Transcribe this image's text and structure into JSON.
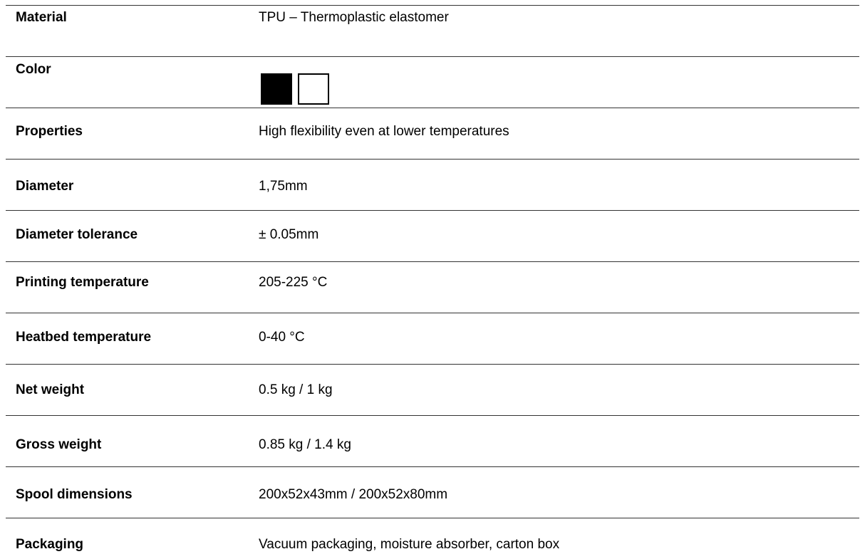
{
  "table": {
    "rows": [
      {
        "label": "Material",
        "value": "TPU –  Thermoplastic elastomer"
      },
      {
        "label": "Color"
      },
      {
        "label": "Properties",
        "value": "High flexibility even at lower temperatures"
      },
      {
        "label": "Diameter",
        "value": "1,75mm"
      },
      {
        "label": "Diameter tolerance",
        "value": "± 0.05mm"
      },
      {
        "label": "Printing temperature",
        "value": "205-225 °C"
      },
      {
        "label": "Heatbed temperature",
        "value": "0-40 °C"
      },
      {
        "label": "Net weight",
        "value": "0.5 kg / 1 kg"
      },
      {
        "label": "Gross weight",
        "value": "0.85 kg  / 1.4 kg"
      },
      {
        "label": "Spool dimensions",
        "value": "200x52x43mm / 200x52x80mm"
      },
      {
        "label": "Packaging",
        "value": "Vacuum packaging, moisture absorber, carton box"
      }
    ]
  }
}
